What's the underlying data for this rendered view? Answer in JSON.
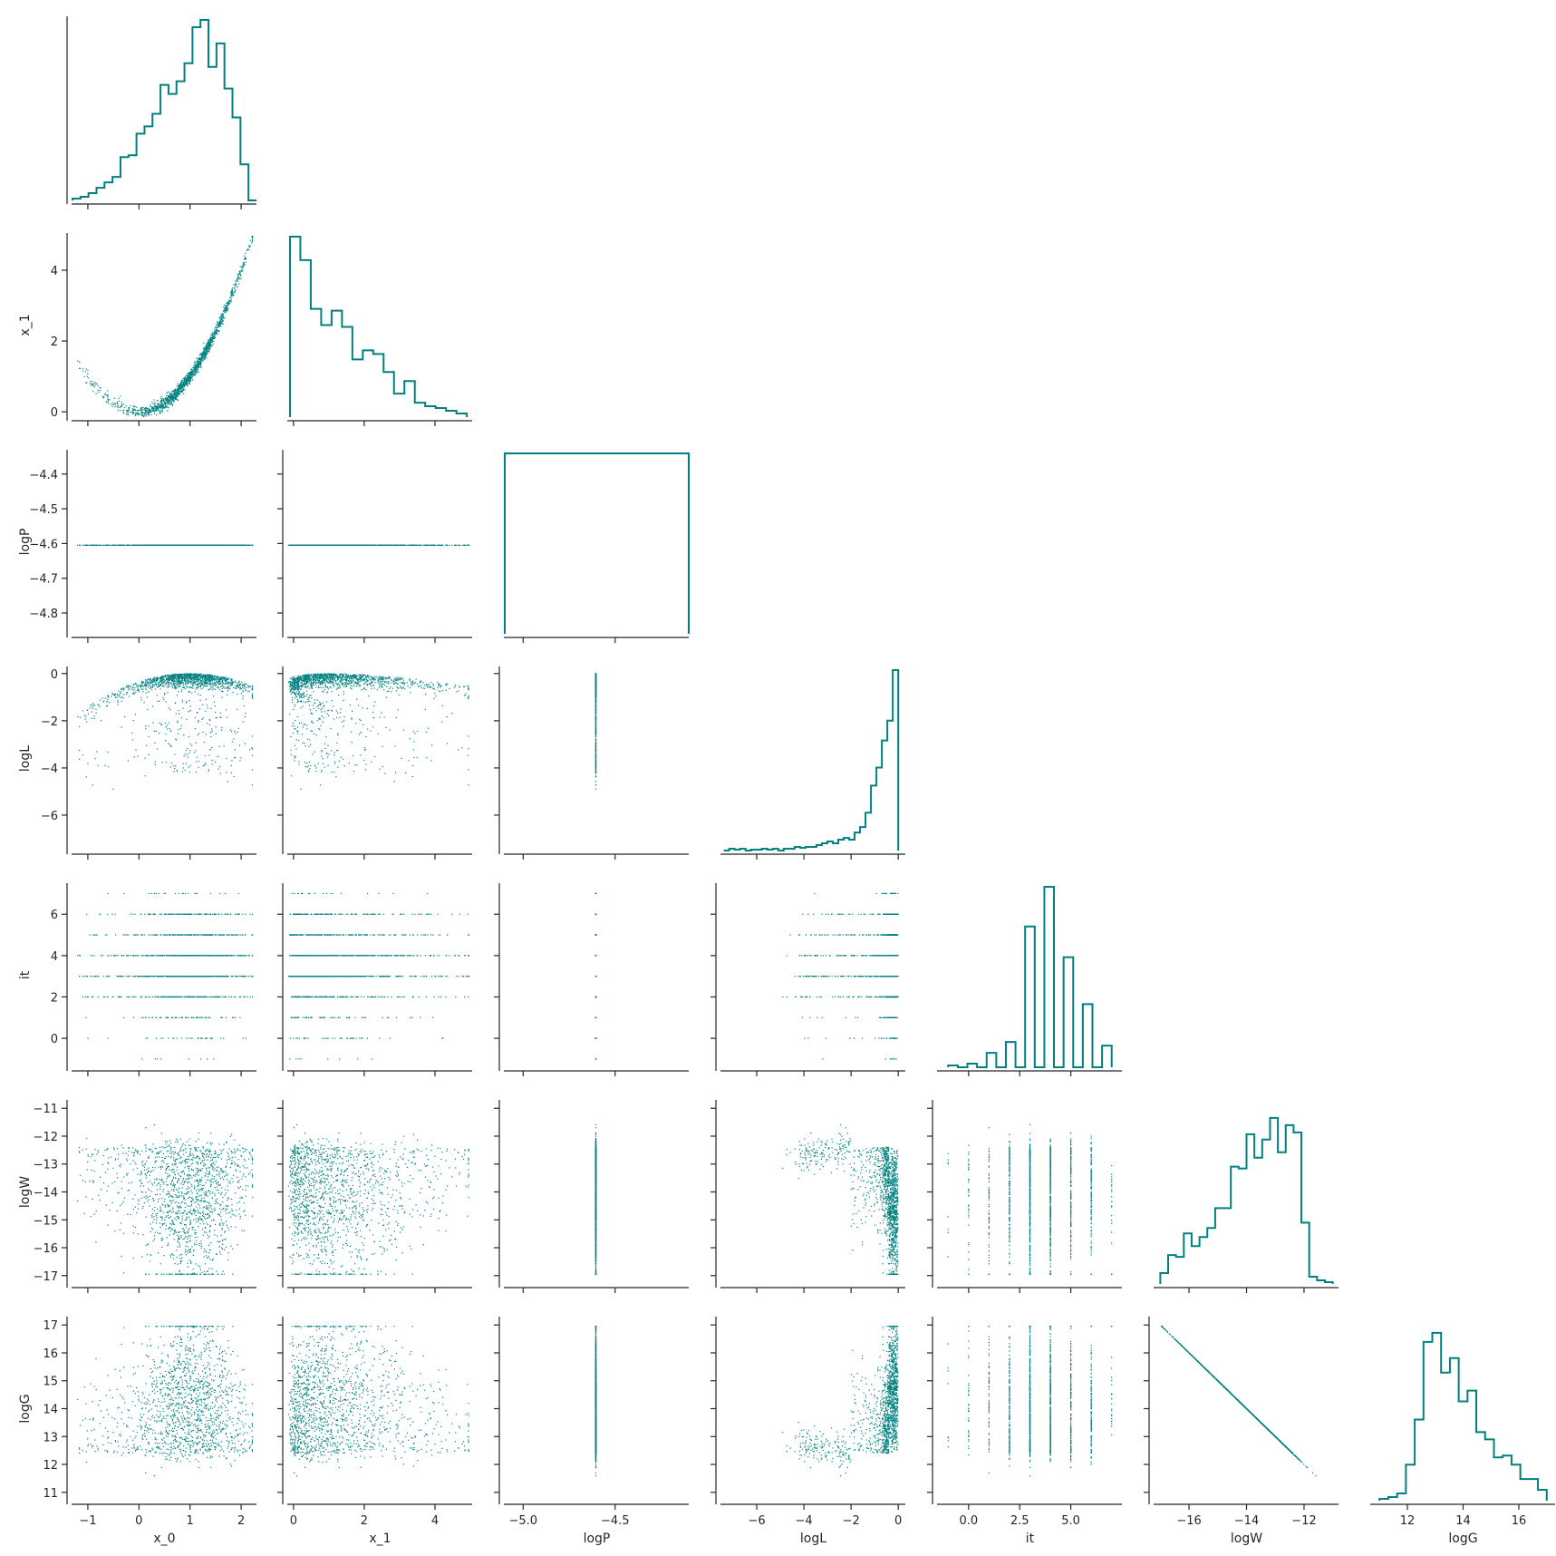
{
  "figure": {
    "type": "corner-plot",
    "color": "#008080",
    "variables": [
      "x_0",
      "x_1",
      "logP",
      "logL",
      "it",
      "logW",
      "logG"
    ]
  },
  "chart_data": {
    "type": "scatter",
    "layout": "corner (lower-triangle pair plot)",
    "marker_color": "#008080",
    "axes": {
      "x_0": {
        "range": [
          -1.3,
          2.3
        ],
        "ticks": [
          -1,
          0,
          1,
          2
        ],
        "tick_labels": [
          "−1",
          "0",
          "1",
          "2"
        ]
      },
      "x_1": {
        "range": [
          -0.15,
          5.05
        ],
        "ticks": [
          0,
          2,
          4
        ],
        "tick_labels": [
          "0",
          "2",
          "4"
        ]
      },
      "logP": {
        "range": [
          -5.1,
          -4.1
        ],
        "ticks": [
          -5.0,
          -4.5
        ],
        "tick_labels": [
          "−5.0",
          "−4.5"
        ],
        "y_range": [
          -4.86,
          -4.33
        ],
        "y_ticks": [
          -4.8,
          -4.7,
          -4.6,
          -4.5,
          -4.4
        ],
        "y_tick_labels": [
          "−4.8",
          "−4.7",
          "−4.6",
          "−4.5",
          "−4.4"
        ]
      },
      "logL": {
        "range": [
          -7.5,
          0.3
        ],
        "ticks": [
          -6,
          -4,
          -2,
          0
        ],
        "tick_labels": [
          "−6",
          "−4",
          "−2",
          "0"
        ],
        "y_ticks": [
          -6,
          -4,
          -2,
          0
        ],
        "y_tick_labels": [
          "−6",
          "−4",
          "−2",
          "0"
        ]
      },
      "it": {
        "range": [
          -1.5,
          7.5
        ],
        "ticks": [
          0.0,
          2.5,
          5.0
        ],
        "tick_labels": [
          "0.0",
          "2.5",
          "5.0"
        ],
        "y_range": [
          -1.4,
          7.5
        ],
        "y_ticks": [
          0,
          2,
          4,
          6
        ],
        "y_tick_labels": [
          "0",
          "2",
          "4",
          "6"
        ]
      },
      "logW": {
        "range": [
          -17.2,
          -10.8
        ],
        "ticks": [
          -16,
          -14,
          -12
        ],
        "tick_labels": [
          "−16",
          "−14",
          "−12"
        ],
        "y_range": [
          -17.3,
          -10.7
        ],
        "y_ticks": [
          -17,
          -16,
          -15,
          -14,
          -13,
          -12,
          -11
        ],
        "y_tick_labels": [
          "−17",
          "−16",
          "−15",
          "−14",
          "−13",
          "−12",
          "−11"
        ]
      },
      "logG": {
        "range": [
          10.7,
          17.3
        ],
        "ticks": [
          12,
          14,
          16
        ],
        "tick_labels": [
          "12",
          "14",
          "16"
        ],
        "y_ticks": [
          11,
          12,
          13,
          14,
          15,
          16,
          17
        ],
        "y_tick_labels": [
          "11",
          "12",
          "13",
          "14",
          "15",
          "16",
          "17"
        ]
      }
    },
    "histograms": {
      "x_0": [
        0.01,
        0.02,
        0.04,
        0.07,
        0.1,
        0.13,
        0.24,
        0.25,
        0.37,
        0.41,
        0.48,
        0.64,
        0.59,
        0.66,
        0.76,
        0.96,
        1.0,
        0.74,
        0.87,
        0.62,
        0.46,
        0.2,
        0.0
      ],
      "x_1": [
        1.0,
        0.87,
        0.6,
        0.51,
        0.59,
        0.5,
        0.32,
        0.37,
        0.35,
        0.25,
        0.13,
        0.2,
        0.08,
        0.06,
        0.05,
        0.035,
        0.02
      ],
      "logP": [
        1.0
      ],
      "logL": [
        0.0,
        0.01,
        0.005,
        0.01,
        0.0,
        0.005,
        0.005,
        0.01,
        0.005,
        0.01,
        0.0,
        0.01,
        0.01,
        0.02,
        0.015,
        0.02,
        0.02,
        0.03,
        0.04,
        0.05,
        0.04,
        0.06,
        0.07,
        0.06,
        0.1,
        0.13,
        0.21,
        0.36,
        0.46,
        0.61,
        0.72,
        1.0
      ],
      "it": [
        0.01,
        0.0,
        0.02,
        0.0,
        0.08,
        0.0,
        0.14,
        0.0,
        0.78,
        0.0,
        1.0,
        0.0,
        0.61,
        0.0,
        0.35,
        0.0,
        0.12
      ],
      "logW": [
        0.06,
        0.16,
        0.15,
        0.28,
        0.21,
        0.26,
        0.31,
        0.42,
        0.42,
        0.65,
        0.64,
        0.83,
        0.7,
        0.8,
        0.92,
        0.73,
        0.88,
        0.84,
        0.34,
        0.04,
        0.02,
        0.01
      ],
      "logG": [
        0.01,
        0.02,
        0.04,
        0.2,
        0.45,
        0.88,
        0.93,
        0.71,
        0.79,
        0.55,
        0.61,
        0.38,
        0.34,
        0.24,
        0.25,
        0.2,
        0.12,
        0.12,
        0.06
      ]
    },
    "hist_ranges": {
      "x_0": [
        -1.3,
        2.3
      ],
      "x_1": [
        -0.1,
        4.9
      ],
      "logP": [
        -5.1,
        -4.1
      ],
      "logL": [
        -7.4,
        0.0
      ],
      "it": [
        -1.0,
        7.0
      ],
      "logW": [
        -17.0,
        -11.0
      ],
      "logG": [
        11.0,
        17.0
      ]
    },
    "trends": {
      "x_1_vs_x_0": "parabola x_1 ≈ (x_0 − 0)^2 with minimum near (0, 0), rising to 5 at x_0 = 2.2",
      "logP_constant": -4.6,
      "logL_vs_x_0": "arc peaking at 0 near x_0 = 1, tail to −7",
      "logW_vs_logG": "exact line logG = −logW",
      "it_values": [
        -1,
        0,
        1,
        2,
        3,
        4,
        5,
        6,
        7
      ]
    }
  }
}
